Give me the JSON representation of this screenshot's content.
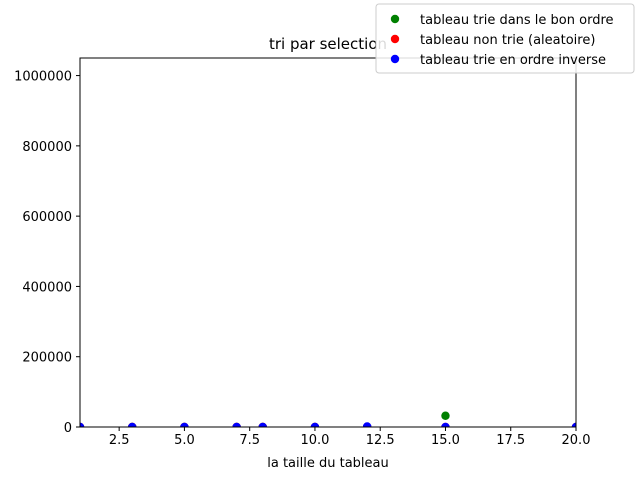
{
  "chart_data": {
    "type": "scatter",
    "title": "tri par selection",
    "xlabel": "la taille du tableau",
    "ylabel": "",
    "xlim": [
      1,
      20
    ],
    "ylim": [
      0,
      1050000
    ],
    "xticks": [
      2.5,
      5.0,
      7.5,
      10.0,
      12.5,
      15.0,
      17.5,
      20.0
    ],
    "xtick_labels": [
      "2.5",
      "5.0",
      "7.5",
      "10.0",
      "12.5",
      "15.0",
      "17.5",
      "20.0"
    ],
    "yticks": [
      0,
      200000,
      400000,
      600000,
      800000,
      1000000
    ],
    "ytick_labels": [
      "0",
      "200000",
      "400000",
      "600000",
      "800000",
      "1000000"
    ],
    "grid": false,
    "legend_position": "top-right",
    "series": [
      {
        "name": "tableau trie dans le bon ordre",
        "color": "#008000",
        "points": [
          [
            1,
            0
          ],
          [
            3,
            0
          ],
          [
            5,
            0
          ],
          [
            7,
            0
          ],
          [
            8,
            0
          ],
          [
            10,
            0
          ],
          [
            12,
            0
          ],
          [
            15,
            32000
          ],
          [
            20,
            0
          ]
        ]
      },
      {
        "name": "tableau non trie (aleatoire)",
        "color": "#ff0000",
        "points": [
          [
            1,
            0
          ],
          [
            3,
            0
          ],
          [
            5,
            0
          ],
          [
            7,
            0
          ],
          [
            8,
            0
          ],
          [
            10,
            0
          ],
          [
            12,
            0
          ],
          [
            15,
            0
          ],
          [
            20,
            0
          ]
        ]
      },
      {
        "name": "tableau trie en ordre inverse",
        "color": "#0000ff",
        "points": [
          [
            1,
            0
          ],
          [
            3,
            0
          ],
          [
            5,
            0
          ],
          [
            7,
            0
          ],
          [
            8,
            0
          ],
          [
            10,
            0
          ],
          [
            12,
            1500
          ],
          [
            15,
            0
          ],
          [
            20,
            0
          ]
        ]
      }
    ]
  }
}
